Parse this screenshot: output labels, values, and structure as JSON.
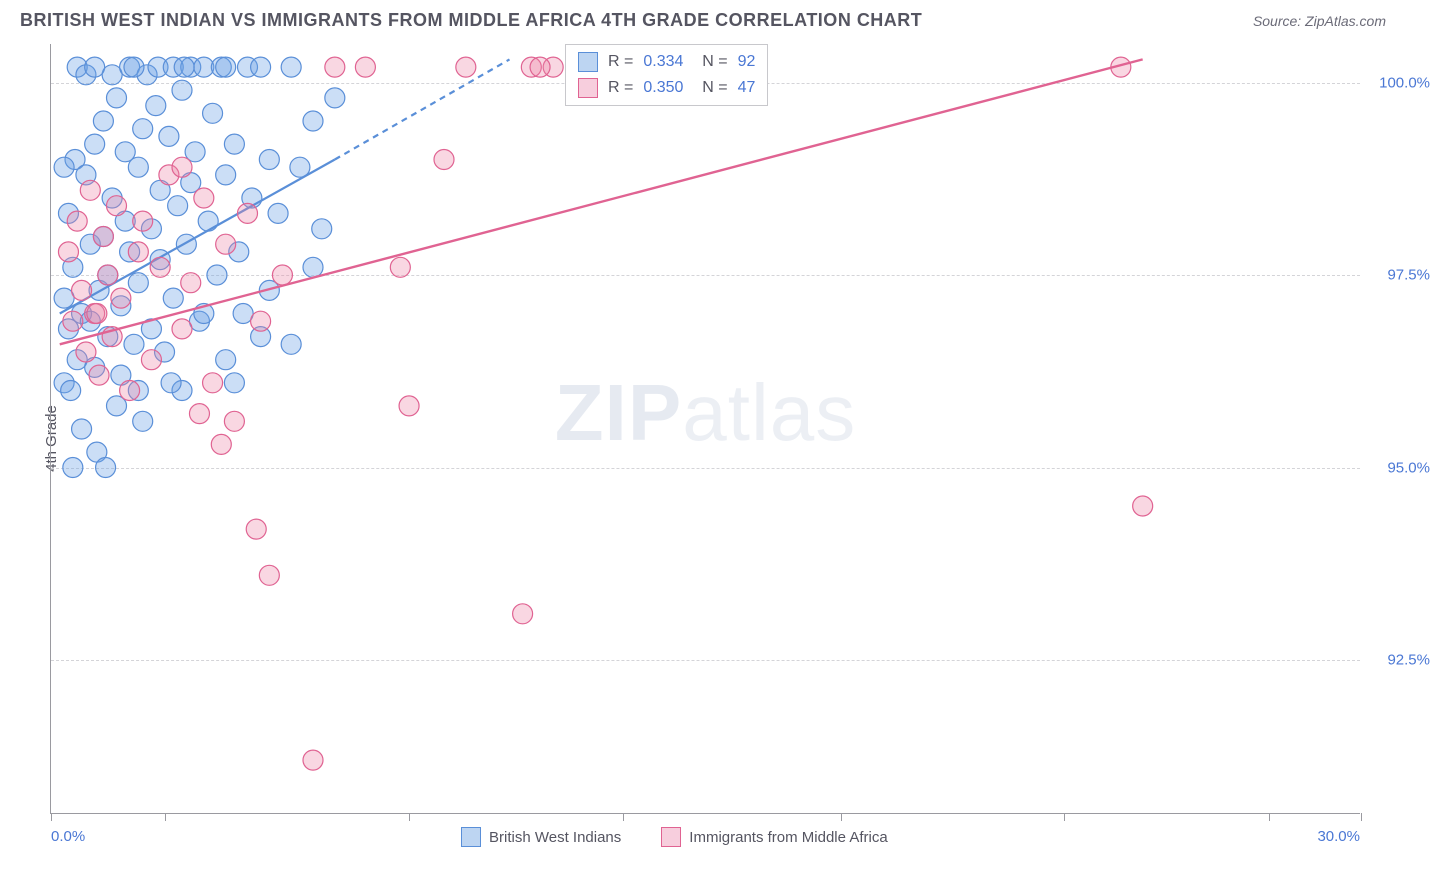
{
  "header": {
    "title": "BRITISH WEST INDIAN VS IMMIGRANTS FROM MIDDLE AFRICA 4TH GRADE CORRELATION CHART",
    "source": "Source: ZipAtlas.com"
  },
  "watermark": {
    "bold": "ZIP",
    "rest": "atlas"
  },
  "chart": {
    "type": "scatter",
    "background_color": "#ffffff",
    "axis_color": "#9a9aa0",
    "grid_color": "#d4d4d8",
    "label_color": "#555561",
    "tick_label_color": "#4a77d4",
    "ylabel": "4th Grade",
    "xlim": [
      0,
      30
    ],
    "ylim": [
      90.5,
      100.5
    ],
    "xticks": [
      0,
      2.6,
      8.2,
      13.1,
      18.1,
      23.2,
      27.9,
      30
    ],
    "xaxis_labels": {
      "left": "0.0%",
      "right": "30.0%"
    },
    "yticks": [
      {
        "v": 92.5,
        "label": "92.5%"
      },
      {
        "v": 95.0,
        "label": "95.0%"
      },
      {
        "v": 97.5,
        "label": "97.5%"
      },
      {
        "v": 100.0,
        "label": "100.0%"
      }
    ],
    "marker_radius": 10,
    "marker_stroke_width": 1.2,
    "series": [
      {
        "name": "British West Indians",
        "fill": "rgba(106,160,230,0.35)",
        "stroke": "#5a8fd8",
        "swatch_fill": "#bdd5f2",
        "swatch_border": "#5a8fd8",
        "R": "0.334",
        "N": "92",
        "trend": {
          "x1": 0.2,
          "y1": 97.0,
          "x2": 6.5,
          "y2": 99.0,
          "dash_to_x": 10.5,
          "dash_to_y": 100.3,
          "width": 2.2
        },
        "points": [
          [
            0.3,
            97.2
          ],
          [
            0.4,
            96.8
          ],
          [
            0.5,
            97.6
          ],
          [
            0.4,
            98.3
          ],
          [
            0.6,
            96.4
          ],
          [
            0.55,
            99.0
          ],
          [
            0.7,
            97.0
          ],
          [
            0.7,
            95.5
          ],
          [
            0.8,
            98.8
          ],
          [
            0.9,
            96.9
          ],
          [
            0.9,
            97.9
          ],
          [
            1.0,
            96.3
          ],
          [
            1.0,
            99.2
          ],
          [
            1.05,
            95.2
          ],
          [
            1.1,
            97.3
          ],
          [
            1.2,
            98.0
          ],
          [
            1.2,
            99.5
          ],
          [
            1.3,
            96.7
          ],
          [
            1.3,
            97.5
          ],
          [
            1.4,
            98.5
          ],
          [
            1.5,
            95.8
          ],
          [
            1.5,
            99.8
          ],
          [
            1.4,
            100.1
          ],
          [
            1.6,
            97.1
          ],
          [
            1.6,
            96.2
          ],
          [
            1.7,
            98.2
          ],
          [
            1.7,
            99.1
          ],
          [
            1.8,
            97.8
          ],
          [
            1.8,
            100.2
          ],
          [
            1.9,
            96.6
          ],
          [
            2.0,
            98.9
          ],
          [
            2.0,
            97.4
          ],
          [
            2.1,
            99.4
          ],
          [
            2.1,
            95.6
          ],
          [
            2.2,
            100.1
          ],
          [
            2.3,
            98.1
          ],
          [
            2.3,
            96.8
          ],
          [
            2.4,
            99.7
          ],
          [
            2.45,
            100.2
          ],
          [
            2.5,
            97.7
          ],
          [
            2.5,
            98.6
          ],
          [
            2.6,
            96.5
          ],
          [
            2.7,
            99.3
          ],
          [
            2.8,
            100.2
          ],
          [
            2.8,
            97.2
          ],
          [
            2.9,
            98.4
          ],
          [
            3.0,
            99.9
          ],
          [
            3.0,
            96.0
          ],
          [
            3.1,
            97.9
          ],
          [
            3.2,
            100.2
          ],
          [
            3.2,
            98.7
          ],
          [
            3.3,
            99.1
          ],
          [
            3.4,
            96.9
          ],
          [
            3.5,
            100.2
          ],
          [
            3.6,
            98.2
          ],
          [
            3.7,
            99.6
          ],
          [
            3.8,
            97.5
          ],
          [
            3.9,
            100.2
          ],
          [
            4.0,
            98.8
          ],
          [
            4.0,
            96.4
          ],
          [
            4.0,
            100.2
          ],
          [
            4.2,
            99.2
          ],
          [
            4.3,
            97.8
          ],
          [
            4.5,
            100.2
          ],
          [
            4.6,
            98.5
          ],
          [
            4.8,
            96.7
          ],
          [
            4.8,
            100.2
          ],
          [
            5.0,
            99.0
          ],
          [
            5.0,
            97.3
          ],
          [
            5.2,
            98.3
          ],
          [
            5.5,
            100.2
          ],
          [
            5.5,
            96.6
          ],
          [
            5.7,
            98.9
          ],
          [
            6.0,
            99.5
          ],
          [
            6.0,
            97.6
          ],
          [
            6.2,
            98.1
          ],
          [
            6.5,
            99.8
          ],
          [
            0.6,
            100.2
          ],
          [
            0.8,
            100.1
          ],
          [
            1.0,
            100.2
          ],
          [
            1.9,
            100.2
          ],
          [
            3.05,
            100.2
          ],
          [
            0.3,
            98.9
          ],
          [
            0.3,
            96.1
          ],
          [
            0.5,
            95.0
          ],
          [
            0.45,
            96.0
          ],
          [
            3.5,
            97.0
          ],
          [
            4.4,
            97.0
          ],
          [
            1.25,
            95.0
          ],
          [
            4.2,
            96.1
          ],
          [
            2.0,
            96.0
          ],
          [
            2.75,
            96.1
          ]
        ]
      },
      {
        "name": "Immigrants from Middle Africa",
        "fill": "rgba(236,130,165,0.32)",
        "stroke": "#e06392",
        "swatch_fill": "#f7cedd",
        "swatch_border": "#e06392",
        "R": "0.350",
        "N": "47",
        "trend": {
          "x1": 0.2,
          "y1": 96.6,
          "x2": 25.0,
          "y2": 100.3,
          "width": 2.4
        },
        "points": [
          [
            0.4,
            97.8
          ],
          [
            0.5,
            96.9
          ],
          [
            0.6,
            98.2
          ],
          [
            0.7,
            97.3
          ],
          [
            0.8,
            96.5
          ],
          [
            0.9,
            98.6
          ],
          [
            1.0,
            97.0
          ],
          [
            1.1,
            96.2
          ],
          [
            1.2,
            98.0
          ],
          [
            1.3,
            97.5
          ],
          [
            1.4,
            96.7
          ],
          [
            1.5,
            98.4
          ],
          [
            1.6,
            97.2
          ],
          [
            1.8,
            96.0
          ],
          [
            2.0,
            97.8
          ],
          [
            2.1,
            98.2
          ],
          [
            2.3,
            96.4
          ],
          [
            2.5,
            97.6
          ],
          [
            2.7,
            98.8
          ],
          [
            3.0,
            96.8
          ],
          [
            3.2,
            97.4
          ],
          [
            3.4,
            95.7
          ],
          [
            3.5,
            98.5
          ],
          [
            3.7,
            96.1
          ],
          [
            4.0,
            97.9
          ],
          [
            4.2,
            95.6
          ],
          [
            4.5,
            98.3
          ],
          [
            4.7,
            94.2
          ],
          [
            5.0,
            93.6
          ],
          [
            5.3,
            97.5
          ],
          [
            3.0,
            98.9
          ],
          [
            6.0,
            91.2
          ],
          [
            6.5,
            100.2
          ],
          [
            7.2,
            100.2
          ],
          [
            8.0,
            97.6
          ],
          [
            8.2,
            95.8
          ],
          [
            9.0,
            99.0
          ],
          [
            9.5,
            100.2
          ],
          [
            11.0,
            100.2
          ],
          [
            10.8,
            93.1
          ],
          [
            11.5,
            100.2
          ],
          [
            11.2,
            100.2
          ],
          [
            24.5,
            100.2
          ],
          [
            25.0,
            94.5
          ],
          [
            3.9,
            95.3
          ],
          [
            1.05,
            97.0
          ],
          [
            4.8,
            96.9
          ]
        ]
      }
    ]
  }
}
